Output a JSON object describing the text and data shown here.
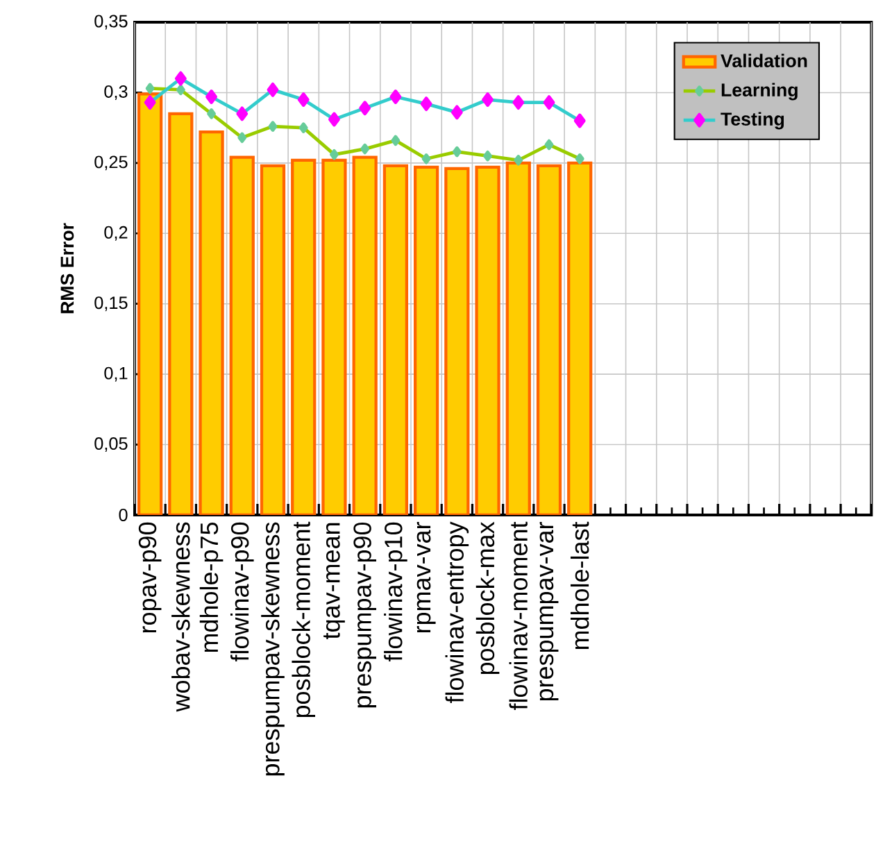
{
  "chart_data": {
    "type": "bar",
    "ylabel": "RMS Error",
    "categories": [
      "ropav-p90",
      "wobav-skewness",
      "mdhole-p75",
      "flowinav-p90",
      "prespumpav-skewness",
      "posblock-moment",
      "tqav-mean",
      "prespumpav-p90",
      "flowinav-p10",
      "rpmav-var",
      "flowinav-entropy",
      "posblock-max",
      "flowinav-moment",
      "prespumpav-var",
      "mdhole-last",
      null,
      null,
      null,
      null,
      null,
      null,
      null,
      null,
      null
    ],
    "series": [
      {
        "name": "Validation",
        "color": "#ffcc00",
        "values": [
          0.299,
          0.285,
          0.272,
          0.254,
          0.248,
          0.252,
          0.252,
          0.254,
          0.248,
          0.247,
          0.246,
          0.247,
          0.25,
          0.248,
          0.25,
          null,
          null,
          null,
          null,
          null,
          null,
          null,
          null,
          null
        ]
      },
      {
        "name": "Learning",
        "type": "line",
        "color": "#99cc00",
        "marker": "diamond",
        "values": [
          0.303,
          0.302,
          0.285,
          0.268,
          0.276,
          0.275,
          0.256,
          0.26,
          0.266,
          0.253,
          0.258,
          0.255,
          0.252,
          0.263,
          0.253,
          null,
          null,
          null,
          null,
          null,
          null,
          null,
          null,
          null
        ]
      },
      {
        "name": "Testing",
        "type": "line",
        "color": "#33cccc",
        "marker": "diamond",
        "values": [
          0.293,
          0.31,
          0.297,
          0.285,
          0.302,
          0.295,
          0.281,
          0.289,
          0.297,
          0.292,
          0.286,
          0.295,
          0.293,
          0.293,
          0.28,
          null,
          null,
          null,
          null,
          null,
          null,
          null,
          null,
          null
        ]
      }
    ],
    "ylim": [
      0,
      0.35
    ],
    "yticks": [
      {
        "value": 0,
        "label": "0"
      },
      {
        "value": 0.05,
        "label": "0,05"
      },
      {
        "value": 0.1,
        "label": "0,1"
      },
      {
        "value": 0.15,
        "label": "0,15"
      },
      {
        "value": 0.2,
        "label": "0,2"
      },
      {
        "value": 0.25,
        "label": "0,25"
      },
      {
        "value": 0.3,
        "label": "0,3"
      },
      {
        "value": 0.35,
        "label": "0,35"
      }
    ],
    "grid": true,
    "legend": "top right"
  }
}
